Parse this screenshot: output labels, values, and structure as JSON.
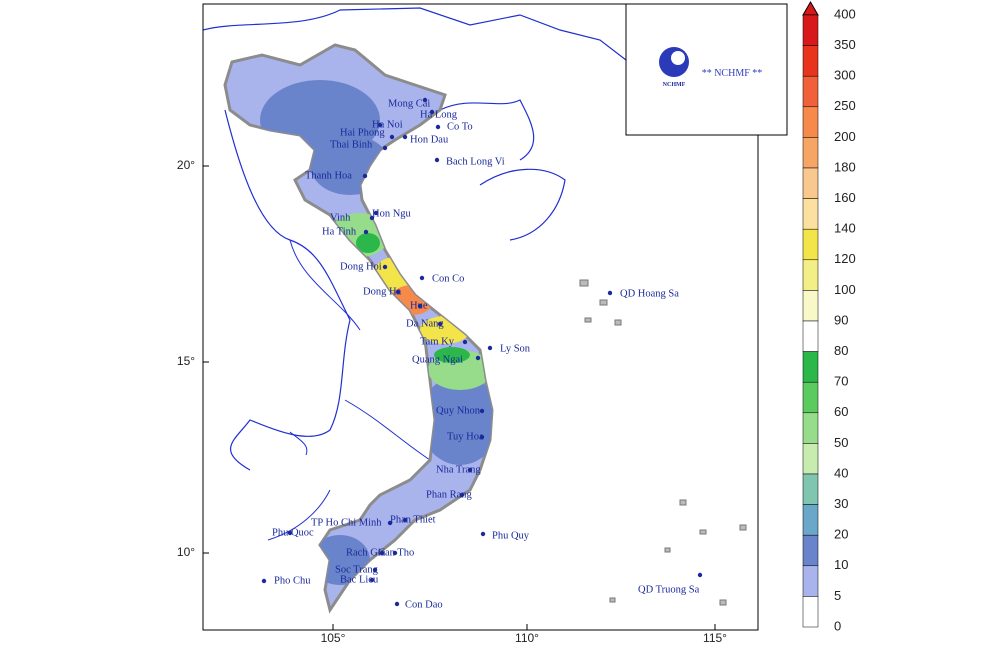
{
  "map": {
    "stations": [
      "Mong Cai",
      "Ha Long",
      "Ha Noi",
      "Co To",
      "Hai Phong",
      "Thai Binh",
      "Hon Dau",
      "Bach Long Vi",
      "Thanh Hoa",
      "Hon Ngu",
      "Vinh",
      "Ha Tinh",
      "Dong Hoi",
      "Con Co",
      "Dong Ha",
      "Hue",
      "Da Nang",
      "Tam Ky",
      "Quang Ngai",
      "Ly Son",
      "QD Hoang Sa",
      "Quy Nhon",
      "Tuy Hoa",
      "Nha Trang",
      "Phan Rang",
      "Phan Thiet",
      "TP Ho Chi Minh",
      "Phu Quoc",
      "Rach Gia",
      "Can Tho",
      "Soc Trang",
      "Bac Lieu",
      "Pho Chu",
      "Con Dao",
      "Phu Quy",
      "QD Truong Sa"
    ],
    "lon_labels": [
      "105°",
      "110°",
      "115°"
    ],
    "lat_labels": [
      "20°",
      "15°",
      "10°"
    ],
    "logo": {
      "mark": "NCHMF",
      "caption": "** NCHMF **"
    },
    "colorbar": [
      {
        "value": 400,
        "color": "#d7191c"
      },
      {
        "value": 350,
        "color": "#e8341c"
      },
      {
        "value": 300,
        "color": "#f0603a"
      },
      {
        "value": 250,
        "color": "#f58a4b"
      },
      {
        "value": 200,
        "color": "#f7a565"
      },
      {
        "value": 180,
        "color": "#f9c88e"
      },
      {
        "value": 160,
        "color": "#fbe0a0"
      },
      {
        "value": 140,
        "color": "#f3e44a"
      },
      {
        "value": 120,
        "color": "#f2ef86"
      },
      {
        "value": 100,
        "color": "#f8f8c8"
      },
      {
        "value": 90,
        "color": "#ffffff"
      },
      {
        "value": 80,
        "color": "#2bb74a"
      },
      {
        "value": 70,
        "color": "#5ccb5f"
      },
      {
        "value": 60,
        "color": "#97dc8a"
      },
      {
        "value": 50,
        "color": "#c8ecb0"
      },
      {
        "value": 40,
        "color": "#7fc5b0"
      },
      {
        "value": 30,
        "color": "#6aa7c8"
      },
      {
        "value": 20,
        "color": "#6a84cc"
      },
      {
        "value": 10,
        "color": "#aab4ec"
      },
      {
        "value": 5,
        "color": "#ffffff"
      },
      {
        "value": 0,
        "color": "#ffffff"
      }
    ]
  }
}
